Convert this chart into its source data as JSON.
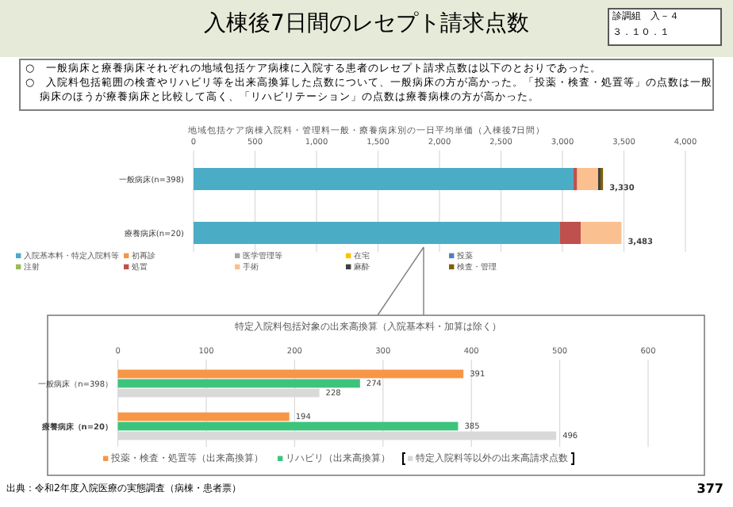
{
  "chart_data": [
    {
      "type": "bar",
      "orientation": "horizontal",
      "stacked": true,
      "title": "地域包括ケア病棟入院料・管理料一般・療養病床別の一日平均単価（入棟後7日間）",
      "categories": [
        "一般病床(n=398)",
        "療養病床(n=20)"
      ],
      "series": [
        {
          "name": "入院基本料・特定入院料等",
          "color": "#4bacc6",
          "values": [
            3090,
            2980
          ]
        },
        {
          "name": "初再診",
          "color": "#f79646",
          "values": [
            0,
            0
          ]
        },
        {
          "name": "医学管理等",
          "color": "#a5a5a5",
          "values": [
            0,
            0
          ]
        },
        {
          "name": "在宅",
          "color": "#ffc000",
          "values": [
            0,
            0
          ]
        },
        {
          "name": "投薬",
          "color": "#4f81bd",
          "values": [
            0,
            0
          ]
        },
        {
          "name": "注射",
          "color": "#9bbb59",
          "values": [
            0,
            0
          ]
        },
        {
          "name": "処置",
          "color": "#c0504d",
          "values": [
            30,
            170
          ]
        },
        {
          "name": "手術",
          "color": "#fac090",
          "values": [
            170,
            330
          ]
        },
        {
          "name": "麻酔",
          "color": "#404040",
          "values": [
            20,
            0
          ]
        },
        {
          "name": "検査・管理",
          "color": "#7f6000",
          "values": [
            20,
            0
          ]
        }
      ],
      "xlim": [
        0,
        4000
      ],
      "xticks": [
        0,
        500,
        {
          "value": 1000,
          "label": "1,000"
        },
        {
          "value": 1500,
          "label": "1,500"
        },
        {
          "value": 2000,
          "label": "2,000"
        },
        {
          "value": 2500,
          "label": "2,500"
        },
        {
          "value": 3000,
          "label": "3,000"
        },
        {
          "value": 3500,
          "label": "3,500"
        },
        {
          "value": 4000,
          "label": "4,000"
        }
      ],
      "grid": "x",
      "legend": "bottom",
      "totals": [
        "3,330",
        "3,483"
      ],
      "annotations": [
        "入棟後7日間のレセプト請求点数",
        "診調組　入－４",
        "３．１０．１",
        "○　一般病床と療養病床それぞれの地域包括ケア病棟に入院する患者のレセプト請求点数は以下のとおりであった。",
        "○　入院料包括範囲の検査やリハビリ等を出来高換算した点数について、一般病床の方が高かった。「投薬・検査・処置等」の点数は一般病床のほうが療養病床と比較して高く、「リハビリテーション」の点数は療養病棟の方が高かった。",
        "出典：令和2年度入院医療の実態調査（病棟・患者票）",
        "377"
      ]
    },
    {
      "type": "bar",
      "orientation": "horizontal",
      "title": "特定入院料包括対象の出来高換算（入院基本料・加算は除く）",
      "categories": [
        "一般病床（n=398）",
        "療養病床（n=20）"
      ],
      "series": [
        {
          "name": "投薬・検査・処置等（出来高換算）",
          "color": "#f79646",
          "values": [
            391,
            194
          ]
        },
        {
          "name": "リハビリ（出来高換算）",
          "color": "#3cc47c",
          "values": [
            274,
            385
          ]
        },
        {
          "name": "特定入院料等以外の出来高請求点数",
          "color": "#d9d9d9",
          "values": [
            228,
            496
          ]
        }
      ],
      "xlim": [
        0,
        600
      ],
      "xticks": [
        0,
        100,
        200,
        300,
        400,
        500,
        600
      ],
      "grid": "x",
      "legend": "bottom",
      "data_labels": true
    }
  ]
}
